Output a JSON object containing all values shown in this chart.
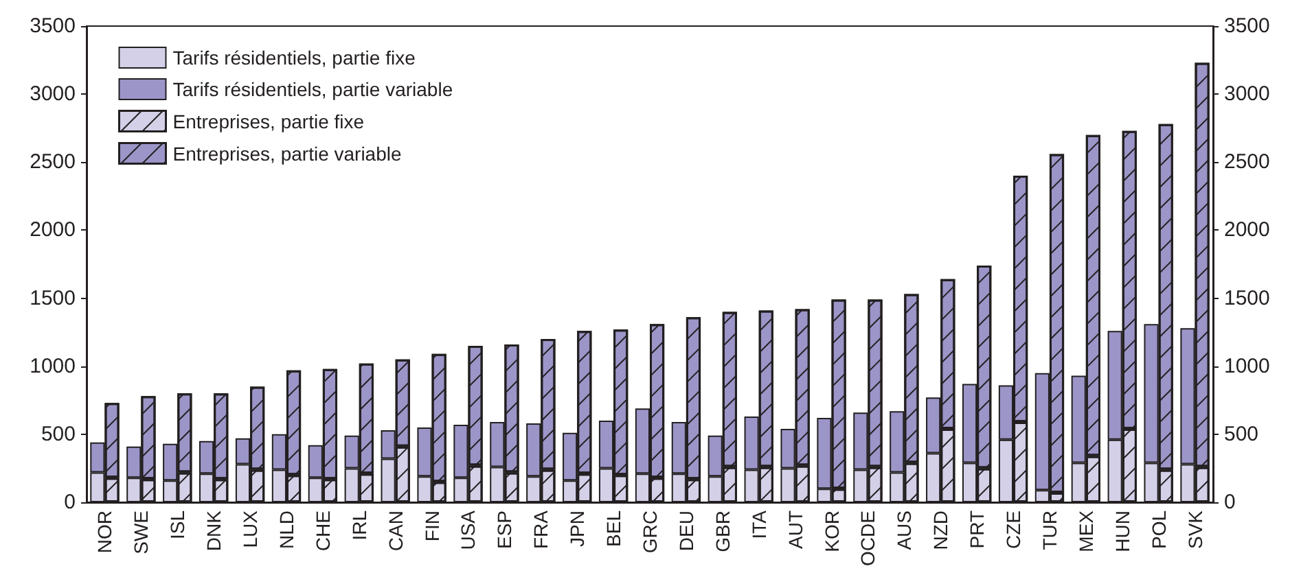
{
  "chart_data": {
    "type": "bar",
    "stacked": true,
    "categories": [
      "NOR",
      "SWE",
      "ISL",
      "DNK",
      "LUX",
      "NLD",
      "CHE",
      "IRL",
      "CAN",
      "FIN",
      "USA",
      "ESP",
      "FRA",
      "JPN",
      "BEL",
      "GRC",
      "DEU",
      "GBR",
      "ITA",
      "AUT",
      "KOR",
      "OCDE",
      "AUS",
      "NZD",
      "PRT",
      "CZE",
      "TUR",
      "MEX",
      "HUN",
      "POL",
      "SVK"
    ],
    "series": [
      {
        "name": "Tarifs résidentiels, partie fixe",
        "color": "#d3d0e8",
        "values": [
          220,
          180,
          160,
          210,
          280,
          240,
          180,
          250,
          320,
          190,
          180,
          260,
          190,
          160,
          250,
          210,
          210,
          190,
          240,
          250,
          100,
          240,
          220,
          360,
          290,
          460,
          90,
          290,
          460,
          290,
          280
        ]
      },
      {
        "name": "Tarifs résidentiels, partie variable",
        "color": "#9b95c8",
        "values": [
          220,
          230,
          270,
          240,
          190,
          260,
          240,
          240,
          210,
          360,
          390,
          330,
          390,
          350,
          350,
          480,
          380,
          300,
          390,
          290,
          520,
          420,
          450,
          410,
          580,
          400,
          860,
          640,
          800,
          1020,
          1000
        ]
      },
      {
        "name": "Entreprises, partie fixe",
        "color": "#d3d0e8",
        "axis": "y2",
        "values": [
          180,
          170,
          220,
          170,
          240,
          200,
          170,
          210,
          410,
          150,
          270,
          220,
          240,
          210,
          200,
          180,
          170,
          260,
          260,
          270,
          100,
          260,
          290,
          540,
          250,
          590,
          70,
          340,
          540,
          240,
          260
        ]
      },
      {
        "name": "Entreprises, partie variable",
        "color": "#9b95c8",
        "axis": "y2",
        "values": [
          550,
          610,
          580,
          630,
          610,
          770,
          810,
          810,
          640,
          940,
          880,
          940,
          960,
          1050,
          1070,
          1130,
          1190,
          1140,
          1150,
          1150,
          1390,
          1230,
          1240,
          1100,
          1490,
          1810,
          2490,
          2360,
          2190,
          2540,
          2970
        ]
      }
    ],
    "ylim": [
      0,
      3500
    ],
    "yticks": [
      0,
      500,
      1000,
      1500,
      2000,
      2500,
      3000,
      3500
    ],
    "y2lim": [
      0,
      3500
    ],
    "y2ticks": [
      0,
      500,
      1000,
      1500,
      2000,
      2500,
      3000,
      3500
    ],
    "legend": "top left"
  }
}
